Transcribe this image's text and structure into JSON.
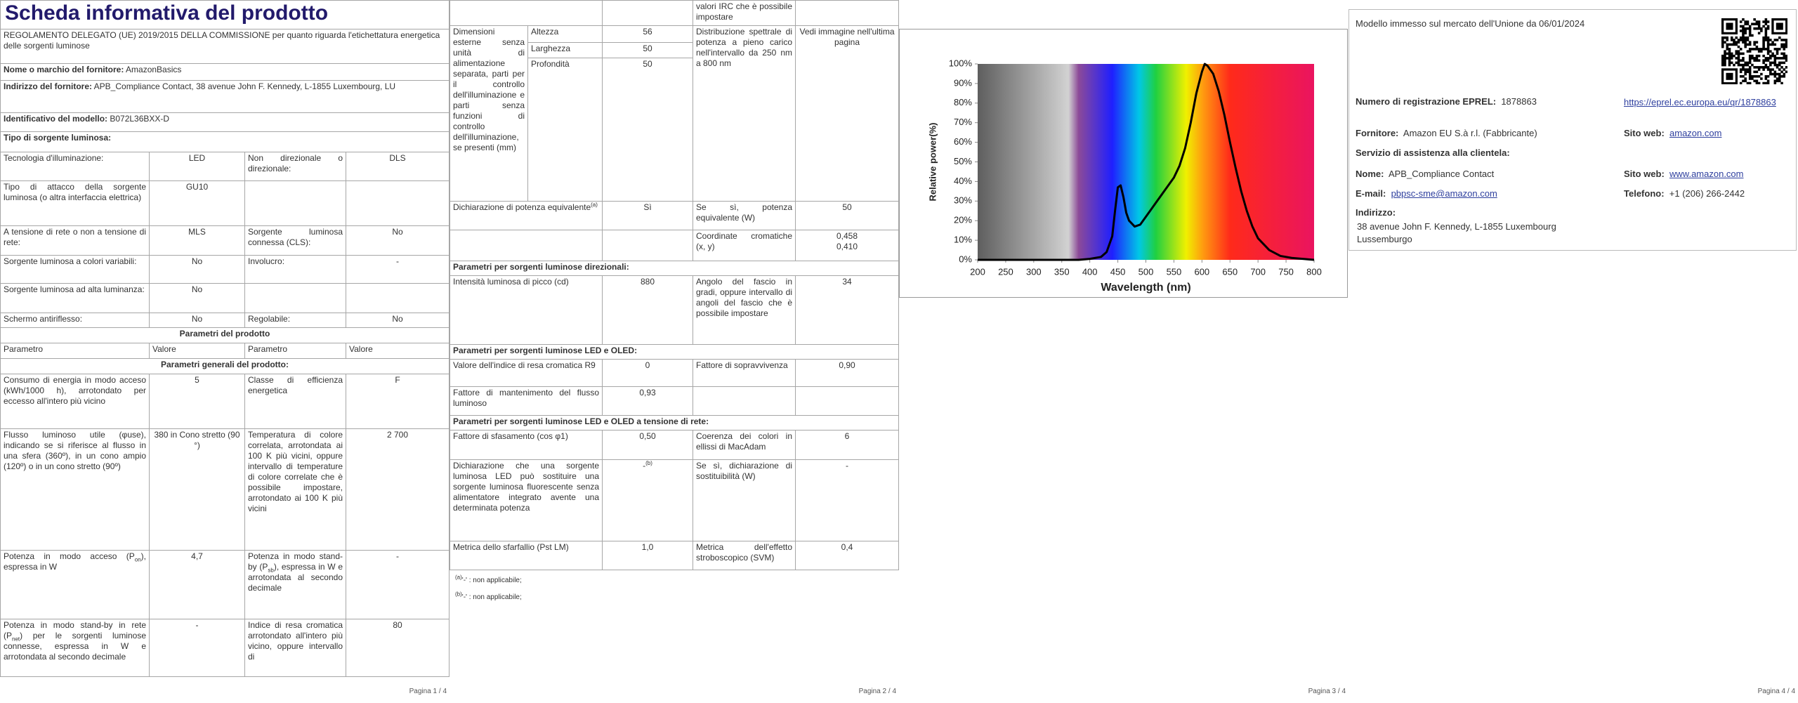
{
  "page_1": {
    "title": "Scheda informativa del prodotto",
    "regulation": "REGOLAMENTO DELEGATO (UE) 2019/2015 DELLA COMMISSIONE per quanto riguarda l'etichettatura energetica delle sorgenti luminose",
    "supplier_name": {
      "label": "Nome o marchio del fornitore:",
      "value": "AmazonBasics"
    },
    "supplier_address": {
      "label": "Indirizzo del fornitore:",
      "value": "APB_Compliance Contact, 38 avenue John F. Kennedy, L-1855 Luxembourg, LU"
    },
    "model": {
      "label": "Identificativo del modello:",
      "value": "B072L36BXX-D"
    },
    "light_source_type": "Tipo di sorgente luminosa:",
    "specs": [
      [
        "Tecnologia d'illuminazione:",
        "LED",
        "Non direzionale o direzionale:",
        "DLS"
      ],
      [
        "Tipo di attacco della sorgente luminosa (o altra interfaccia elettrica)",
        "GU10",
        null,
        null
      ],
      [
        "A tensione di rete o non a tensione di rete:",
        "MLS",
        "Sorgente luminosa connessa (CLS):",
        "No"
      ],
      [
        "Sorgente luminosa a colori variabili:",
        "No",
        "Involucro:",
        "-"
      ],
      [
        "Sorgente luminosa ad alta luminanza:",
        "No",
        null,
        null
      ],
      [
        "Schermo antiriflesso:",
        "No",
        "Regolabile:",
        "No"
      ]
    ],
    "product_params": "Parametri del prodotto",
    "header": [
      "Parametro",
      "Valore",
      "Parametro",
      "Valore"
    ],
    "general_params": "Parametri generali del prodotto:",
    "general": [
      [
        "Consumo di energia in modo acceso (kWh/1000 h), arrotondato per eccesso all'intero più vicino",
        "5",
        "Classe di efficienza energetica",
        "F"
      ],
      [
        "Flusso luminoso utile (φuse), indicando se si riferisce al flusso in una sfera (360º), in un cono ampio (120º) o in un cono stretto (90º)",
        "380 in Cono stretto (90 °)",
        "Temperatura di colore correlata, arrotondata ai 100 K più vicini, oppure intervallo di temperature di colore correlate che è possibile impostare, arrotondato ai 100 K più vicini",
        "2 700"
      ],
      [
        [
          "Potenza in modo acceso (P",
          {
            "sub": "on"
          },
          "), espressa in W"
        ],
        "4,7",
        [
          "Potenza in modo stand-by (P",
          {
            "sub": "sb"
          },
          "), espressa in W e arrotondata al secondo decimale"
        ],
        "-"
      ],
      [
        [
          "Potenza in modo stand-by in rete (P",
          {
            "sub": "net"
          },
          ") per le sorgenti luminose connesse, espressa in W e arrotondata al secondo decimale"
        ],
        "-",
        "Indice di resa cromatica arrotondato all'intero più vicino, oppure intervallo di",
        "80"
      ]
    ],
    "footer": "Pagina 1 / 4"
  },
  "page_2": {
    "irc_continued": "valori IRC che è possibile impostare",
    "dimensions": {
      "label": "Dimensioni esterne senza unità di alimentazione separata, parti per il controllo dell'illuminazione e parti senza funzioni di controllo dell'illuminazione, se presenti (mm)",
      "rows": [
        [
          "Altezza",
          "56"
        ],
        [
          "Larghezza",
          "50"
        ],
        [
          "Profondità",
          "50"
        ]
      ]
    },
    "spectral": [
      "Distribuzione spettrale di potenza a pieno carico nell'intervallo da 250 nm a 800 nm",
      "Vedi immagine nell'ultima pagina"
    ],
    "rows_a": [
      [
        [
          "Dichiarazione di potenza equivalente",
          {
            "sup": "(a)"
          }
        ],
        "Sì",
        "Se sì, potenza equivalente (W)",
        "50"
      ],
      [
        null,
        null,
        "Coordinate cromatiche (x, y)",
        "0,458\n0,410"
      ]
    ],
    "directional": "Parametri per sorgenti luminose direzionali:",
    "rows_b": [
      [
        "Intensità luminosa di picco (cd)",
        "880",
        "Angolo del fascio in gradi, oppure intervallo di angoli del fascio che è possibile impostare",
        "34"
      ]
    ],
    "led_oled": "Parametri per sorgenti luminose LED e OLED:",
    "rows_c": [
      [
        "Valore dell'indice di resa cromatica R9",
        "0",
        "Fattore di sopravvivenza",
        "0,90"
      ],
      [
        "Fattore di mantenimento del flusso luminoso",
        "0,93",
        null,
        null
      ]
    ],
    "mains": "Parametri per sorgenti luminose LED e OLED a tensione di rete:",
    "rows_d": [
      [
        "Fattore di sfasamento (cos φ1)",
        "0,50",
        "Coerenza dei colori in ellissi di MacAdam",
        "6"
      ],
      [
        "Dichiarazione che una sorgente luminosa LED può sostituire una sorgente luminosa fluorescente senza alimentatore integrato avente una determinata potenza",
        [
          "-",
          {
            "sup": "(b)"
          }
        ],
        "Se sì, dichiarazione di sostituibilità (W)",
        "-"
      ],
      [
        "Metrica dello sfarfallio (Pst LM)",
        "1,0",
        "Metrica dell'effetto stroboscopico (SVM)",
        "0,4"
      ]
    ],
    "footnotes": [
      [
        {
          "sup": "(a)"
        },
        "'-' : non applicabile;"
      ],
      [
        {
          "sup": "(b)"
        },
        "'-' : non applicabile;"
      ]
    ],
    "footer": "Pagina 2 / 4"
  },
  "page_3": {
    "footer": "Pagina 3 / 4"
  },
  "page_4": {
    "placed_on_market": "Modello immesso sul mercato dell'Unione da 06/01/2024",
    "eprel": {
      "label": "Numero di registrazione EPREL:",
      "value": "1878863",
      "link": "https://eprel.ec.europa.eu/qr/1878863"
    },
    "supplier": {
      "label": "Fornitore:",
      "value": "Amazon EU S.à r.l. (Fabbricante)",
      "website_label": "Sito web:",
      "website": "amazon.com"
    },
    "customer_service": "Servizio di assistenza alla clientela:",
    "contact": {
      "label": "Nome:",
      "value": "APB_Compliance Contact",
      "website_label": "Sito web:",
      "website": "www.amazon.com"
    },
    "email": {
      "label": "E-mail:",
      "value": "pbpsc-sme@amazon.com",
      "phone_label": "Telefono:",
      "phone": "+1 (206) 266-2442"
    },
    "address": {
      "label": "Indirizzo:",
      "lines": [
        "38 avenue John F. Kennedy, L-1855 Luxembourg",
        "Lussemburgo"
      ]
    },
    "footer": "Pagina 4 / 4"
  },
  "chart_data": {
    "type": "line",
    "x_label": "Wavelength (nm)",
    "y_label": "Relative power(%)",
    "x": [
      200,
      250,
      300,
      350,
      380,
      400,
      420,
      430,
      440,
      445,
      450,
      455,
      460,
      465,
      470,
      480,
      490,
      500,
      510,
      520,
      530,
      540,
      550,
      560,
      570,
      580,
      590,
      600,
      605,
      610,
      620,
      630,
      640,
      650,
      660,
      670,
      680,
      690,
      700,
      720,
      740,
      760,
      780,
      800
    ],
    "values": [
      0,
      0,
      0,
      0,
      0,
      0.5,
      1.5,
      4,
      12,
      25,
      37,
      38,
      32,
      24,
      20,
      17,
      18,
      22,
      26,
      30,
      34,
      38,
      42,
      48,
      57,
      70,
      85,
      96,
      100,
      99,
      95,
      86,
      74,
      60,
      47,
      35,
      25,
      17,
      11,
      5,
      2,
      1,
      0.5,
      0
    ],
    "color": "#000000",
    "xlim": [
      200,
      800
    ],
    "ylim": [
      0,
      100
    ],
    "xticks": [
      200,
      250,
      300,
      350,
      400,
      450,
      500,
      550,
      600,
      650,
      700,
      750,
      800
    ],
    "yticks": [
      {
        "value": 0,
        "label": "0%"
      },
      {
        "value": 10,
        "label": "10%"
      },
      {
        "value": 20,
        "label": "20%"
      },
      {
        "value": 30,
        "label": "30%"
      },
      {
        "value": 40,
        "label": "40%"
      },
      {
        "value": 50,
        "label": "50%"
      },
      {
        "value": 60,
        "label": "60%"
      },
      {
        "value": 70,
        "label": "70%"
      },
      {
        "value": 80,
        "label": "80%"
      },
      {
        "value": 90,
        "label": "90%"
      },
      {
        "value": 100,
        "label": "100%"
      }
    ]
  }
}
